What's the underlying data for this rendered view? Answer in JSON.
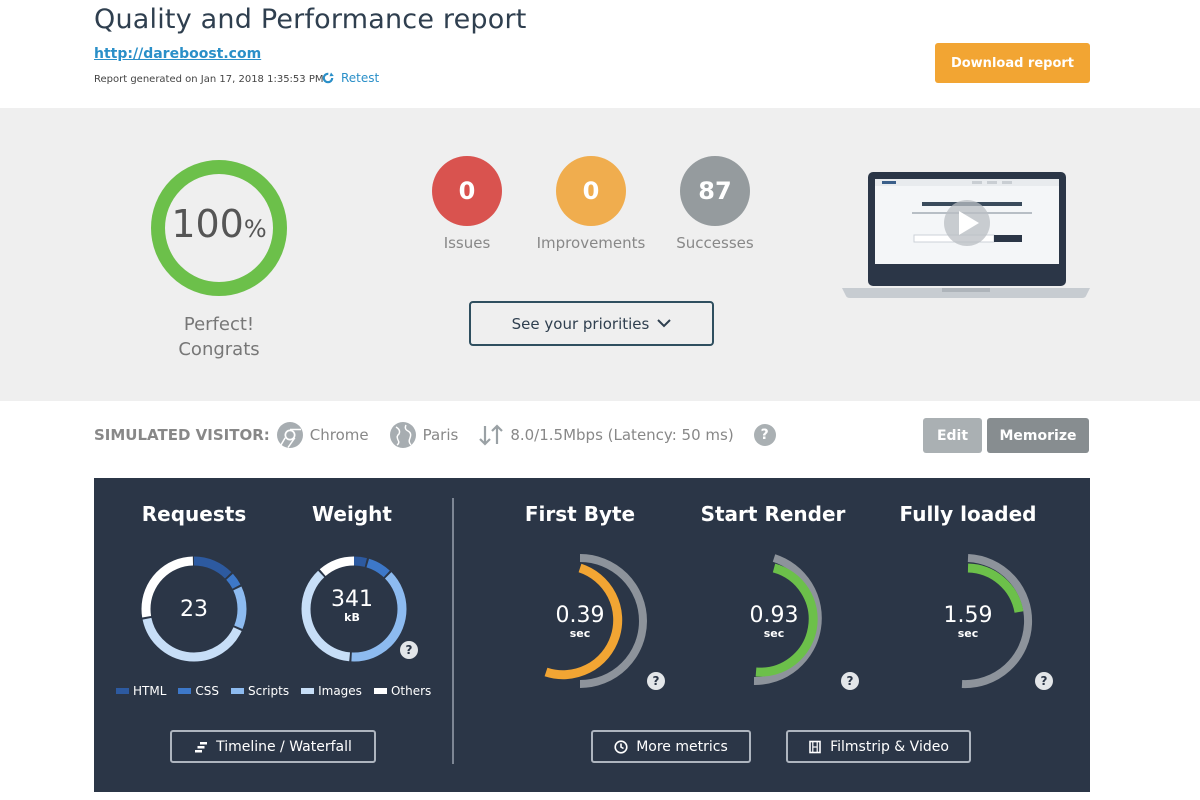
{
  "header": {
    "title": "Quality and Performance report",
    "url": "http://dareboost.com",
    "generated": "Report generated on Jan 17, 2018 1:35:53 PM",
    "retest_label": "Retest",
    "download_label": "Download report"
  },
  "summary": {
    "score_value": "100",
    "score_unit": "%",
    "score_fraction": 1.0,
    "verdict_line1": "Perfect!",
    "verdict_line2": "Congrats",
    "counters": {
      "issues": {
        "value": "0",
        "label": "Issues"
      },
      "improvements": {
        "value": "0",
        "label": "Improvements"
      },
      "successes": {
        "value": "87",
        "label": "Successes"
      }
    },
    "priorities_label": "See your priorities"
  },
  "visitor": {
    "label": "SIMULATED VISITOR:",
    "browser": "Chrome",
    "location": "Paris",
    "connection": "8.0/1.5Mbps (Latency: 50 ms)",
    "help": "?",
    "edit_label": "Edit",
    "memorize_label": "Memorize"
  },
  "metrics": {
    "requests": {
      "title": "Requests",
      "value": "23"
    },
    "weight": {
      "title": "Weight",
      "value": "341",
      "unit": "kB"
    },
    "first_byte": {
      "title": "First Byte",
      "value": "0.39",
      "unit": "sec"
    },
    "start_render": {
      "title": "Start Render",
      "value": "0.93",
      "unit": "sec"
    },
    "fully_loaded": {
      "title": "Fully loaded",
      "value": "1.59",
      "unit": "sec"
    },
    "legend": {
      "html": "HTML",
      "css": "CSS",
      "scripts": "Scripts",
      "images": "Images",
      "others": "Others"
    },
    "help": "?",
    "timeline_label": "Timeline / Waterfall",
    "more_metrics_label": "More metrics",
    "filmstrip_label": "Filmstrip & Video"
  },
  "colors": {
    "accent_orange": "#f2a533",
    "success_green": "#6cc04a",
    "issue_red": "#d9534f",
    "improvement_orange": "#f0ad4e",
    "success_grey": "#959b9e",
    "panel_bg": "#2b3647",
    "link_blue": "#2a8fc8"
  }
}
